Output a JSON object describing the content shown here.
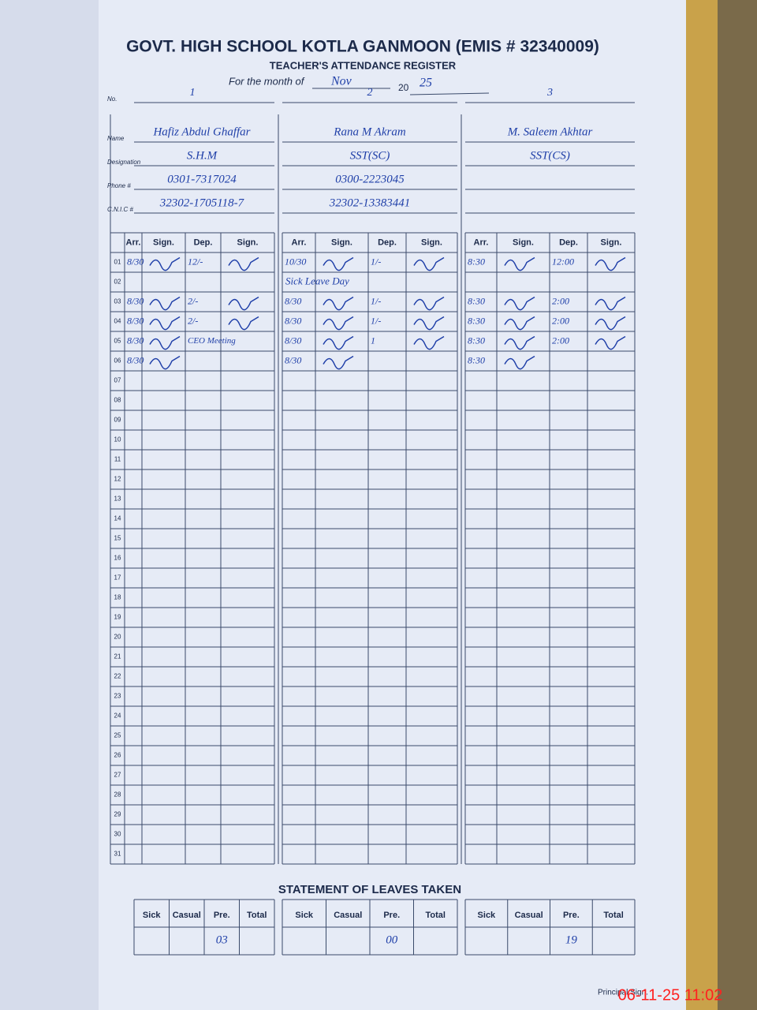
{
  "header": {
    "title": "GOVT. HIGH SCHOOL KOTLA GANMOON (EMIS # 32340009)",
    "subtitle": "TEACHER'S ATTENDANCE REGISTER",
    "month_label": "For the month of",
    "month": "Nov",
    "year_prefix": "20",
    "year": "25"
  },
  "field_labels": {
    "no": "No.",
    "name": "Name",
    "designation": "Designation",
    "phone": "Phone #",
    "cnic": "C.N.I.C #"
  },
  "columns": [
    "Arr.",
    "Sign.",
    "Dep.",
    "Sign."
  ],
  "days": [
    "01",
    "02",
    "03",
    "04",
    "05",
    "06",
    "07",
    "08",
    "09",
    "10",
    "11",
    "12",
    "13",
    "14",
    "15",
    "16",
    "17",
    "18",
    "19",
    "20",
    "21",
    "22",
    "23",
    "24",
    "25",
    "26",
    "27",
    "28",
    "29",
    "30",
    "31"
  ],
  "teachers": [
    {
      "no": "1",
      "name": "Hafiz Abdul Ghaffar",
      "designation": "S.H.M",
      "phone": "0301-7317024",
      "cnic": "32302-1705118-7",
      "arr": [
        "8/30",
        null,
        "8/30",
        "8/30",
        "8/30",
        "8/30"
      ],
      "dep": [
        "12/-",
        null,
        "2/-",
        "2/-",
        "CEO Meeting",
        null
      ],
      "notes": [
        null,
        null,
        null,
        null,
        null,
        null
      ]
    },
    {
      "no": "2",
      "name": "Rana M Akram",
      "designation": "SST(SC)",
      "phone": "0300-2223045",
      "cnic": "32302-13383441",
      "arr": [
        "10/30",
        null,
        "8/30",
        "8/30",
        "8/30",
        "8/30"
      ],
      "dep": [
        "1/-",
        null,
        "1/-",
        "1/-",
        "1",
        null
      ],
      "notes": [
        null,
        "Sick Leave Day",
        null,
        null,
        null,
        null
      ]
    },
    {
      "no": "3",
      "name": "M. Saleem Akhtar",
      "designation": "SST(CS)",
      "phone": null,
      "cnic": null,
      "arr": [
        "8:30",
        null,
        "8:30",
        "8:30",
        "8:30",
        "8:30"
      ],
      "dep": [
        "12:00",
        null,
        "2:00",
        "2:00",
        "2:00",
        null
      ],
      "notes": [
        null,
        null,
        null,
        null,
        null,
        null
      ]
    }
  ],
  "leaves": {
    "title": "STATEMENT OF LEAVES TAKEN",
    "columns": [
      "Sick",
      "Casual",
      "Pre.",
      "Total"
    ],
    "pre": [
      "03",
      "00",
      "19"
    ]
  },
  "principal": "Principal Sign.",
  "timestamp": "06-11-25 11:02"
}
